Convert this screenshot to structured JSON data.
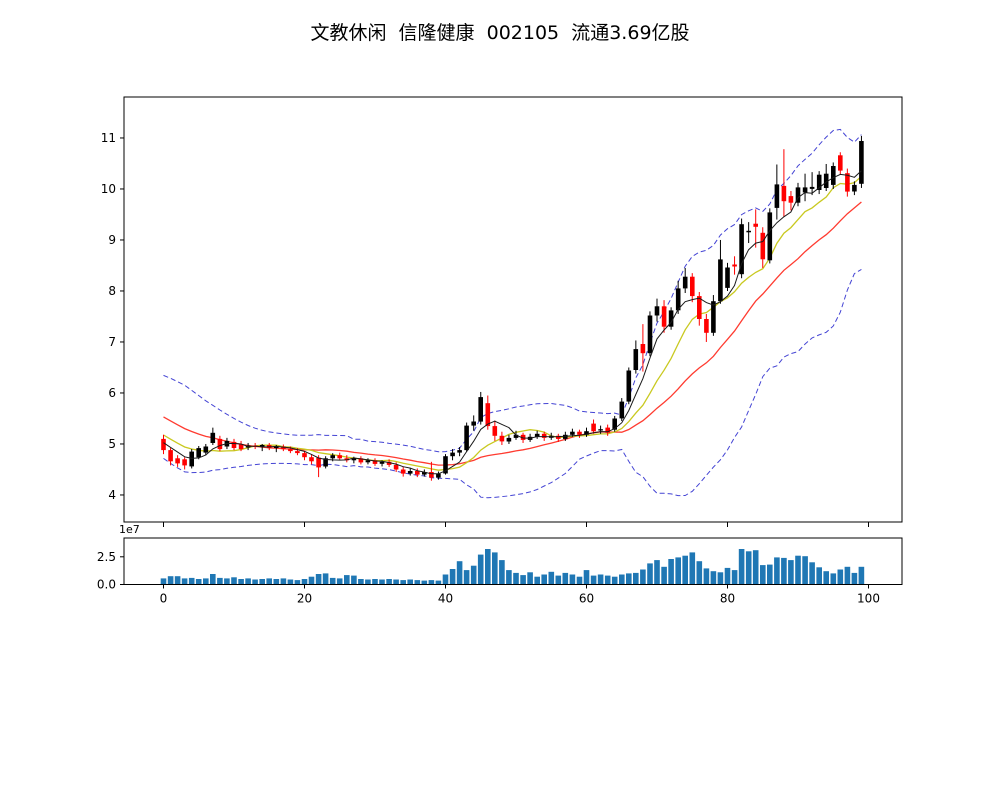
{
  "title": "文教休闲  信隆健康  002105  流通3.69亿股",
  "chart_data": {
    "type": "candlestick",
    "title": "文教休闲  信隆健康  002105  流通3.69亿股",
    "xlabel": "",
    "ylabel": "",
    "grid": false,
    "legend": "none",
    "x_axis": {
      "ticks": [
        0,
        20,
        40,
        60,
        80,
        100
      ],
      "xlim": [
        -5.6,
        104.7
      ]
    },
    "price_axis": {
      "ticks": [
        4,
        5,
        6,
        7,
        8,
        9,
        10,
        11
      ],
      "ylim": [
        3.47,
        11.79
      ]
    },
    "volume_axis": {
      "tick_values": [
        0,
        2.5
      ],
      "tick_labels": [
        "0.0",
        "2.5"
      ],
      "multiplier_label": "1e7",
      "ylim": [
        0,
        4.2
      ],
      "unit": "1e7 shares"
    },
    "days": 100,
    "ohlc": [
      [
        5.1,
        5.18,
        4.8,
        4.88
      ],
      [
        4.88,
        4.92,
        4.58,
        4.66
      ],
      [
        4.72,
        4.78,
        4.55,
        4.62
      ],
      [
        4.7,
        4.74,
        4.5,
        4.58
      ],
      [
        4.56,
        4.9,
        4.52,
        4.85
      ],
      [
        4.74,
        4.96,
        4.7,
        4.92
      ],
      [
        4.83,
        5.0,
        4.78,
        4.95
      ],
      [
        5.02,
        5.32,
        4.98,
        5.22
      ],
      [
        5.1,
        5.16,
        4.86,
        4.9
      ],
      [
        4.95,
        5.12,
        4.9,
        5.06
      ],
      [
        5.04,
        5.1,
        4.88,
        4.92
      ],
      [
        5.0,
        5.06,
        4.86,
        4.9
      ],
      [
        4.93,
        5.02,
        4.88,
        4.97
      ],
      [
        4.97,
        5.02,
        4.9,
        4.94
      ],
      [
        4.94,
        5.0,
        4.86,
        4.98
      ],
      [
        4.98,
        5.02,
        4.88,
        4.92
      ],
      [
        4.92,
        4.98,
        4.84,
        4.95
      ],
      [
        4.95,
        4.99,
        4.86,
        4.9
      ],
      [
        4.9,
        4.95,
        4.82,
        4.86
      ],
      [
        4.86,
        4.92,
        4.78,
        4.82
      ],
      [
        4.82,
        4.86,
        4.68,
        4.74
      ],
      [
        4.74,
        4.8,
        4.6,
        4.66
      ],
      [
        4.73,
        4.78,
        4.35,
        4.54
      ],
      [
        4.56,
        4.76,
        4.52,
        4.72
      ],
      [
        4.72,
        4.82,
        4.66,
        4.78
      ],
      [
        4.78,
        4.83,
        4.68,
        4.72
      ],
      [
        4.72,
        4.78,
        4.64,
        4.68
      ],
      [
        4.68,
        4.75,
        4.62,
        4.72
      ],
      [
        4.72,
        4.76,
        4.6,
        4.64
      ],
      [
        4.64,
        4.72,
        4.6,
        4.68
      ],
      [
        4.68,
        4.72,
        4.57,
        4.61
      ],
      [
        4.61,
        4.68,
        4.56,
        4.65
      ],
      [
        4.65,
        4.7,
        4.55,
        4.59
      ],
      [
        4.59,
        4.64,
        4.45,
        4.5
      ],
      [
        4.5,
        4.56,
        4.36,
        4.42
      ],
      [
        4.42,
        4.52,
        4.38,
        4.47
      ],
      [
        4.47,
        4.52,
        4.35,
        4.4
      ],
      [
        4.4,
        4.5,
        4.36,
        4.45
      ],
      [
        4.45,
        4.65,
        4.28,
        4.34
      ],
      [
        4.34,
        4.46,
        4.3,
        4.42
      ],
      [
        4.42,
        4.8,
        4.4,
        4.76
      ],
      [
        4.76,
        4.9,
        4.68,
        4.83
      ],
      [
        4.83,
        4.94,
        4.76,
        4.88
      ],
      [
        4.88,
        5.42,
        4.85,
        5.36
      ],
      [
        5.36,
        5.56,
        5.26,
        5.44
      ],
      [
        5.44,
        6.02,
        5.38,
        5.92
      ],
      [
        5.8,
        5.95,
        5.28,
        5.35
      ],
      [
        5.35,
        5.46,
        5.06,
        5.16
      ],
      [
        5.16,
        5.24,
        4.98,
        5.05
      ],
      [
        5.05,
        5.18,
        5.0,
        5.12
      ],
      [
        5.12,
        5.26,
        5.08,
        5.18
      ],
      [
        5.18,
        5.22,
        5.02,
        5.08
      ],
      [
        5.08,
        5.2,
        5.04,
        5.14
      ],
      [
        5.14,
        5.26,
        5.1,
        5.2
      ],
      [
        5.2,
        5.24,
        5.06,
        5.12
      ],
      [
        5.12,
        5.22,
        5.08,
        5.16
      ],
      [
        5.16,
        5.2,
        5.04,
        5.1
      ],
      [
        5.1,
        5.24,
        5.06,
        5.18
      ],
      [
        5.18,
        5.3,
        5.14,
        5.24
      ],
      [
        5.24,
        5.28,
        5.12,
        5.18
      ],
      [
        5.18,
        5.32,
        5.14,
        5.25
      ],
      [
        5.4,
        5.48,
        5.2,
        5.25
      ],
      [
        5.27,
        5.36,
        5.2,
        5.29
      ],
      [
        5.32,
        5.38,
        5.16,
        5.22
      ],
      [
        5.28,
        5.55,
        5.24,
        5.5
      ],
      [
        5.5,
        5.9,
        5.45,
        5.83
      ],
      [
        5.83,
        6.5,
        5.78,
        6.44
      ],
      [
        6.45,
        7.03,
        6.38,
        6.86
      ],
      [
        6.96,
        7.35,
        6.42,
        6.78
      ],
      [
        6.78,
        7.6,
        6.72,
        7.52
      ],
      [
        7.52,
        7.85,
        7.4,
        7.7
      ],
      [
        7.7,
        7.82,
        7.18,
        7.3
      ],
      [
        7.3,
        7.68,
        7.24,
        7.62
      ],
      [
        7.62,
        8.2,
        7.55,
        8.05
      ],
      [
        8.05,
        8.45,
        7.96,
        8.28
      ],
      [
        8.28,
        8.35,
        7.78,
        7.9
      ],
      [
        7.9,
        7.98,
        7.32,
        7.45
      ],
      [
        7.45,
        7.55,
        7.0,
        7.18
      ],
      [
        7.18,
        7.92,
        7.12,
        7.8
      ],
      [
        7.8,
        9.0,
        7.75,
        8.62
      ],
      [
        8.06,
        8.55,
        8.0,
        8.46
      ],
      [
        8.52,
        8.68,
        8.32,
        8.48
      ],
      [
        8.33,
        9.42,
        8.25,
        9.31
      ],
      [
        9.15,
        9.35,
        8.94,
        9.18
      ],
      [
        9.32,
        9.6,
        8.85,
        9.26
      ],
      [
        9.14,
        9.25,
        8.45,
        8.62
      ],
      [
        8.6,
        9.62,
        8.54,
        9.54
      ],
      [
        9.63,
        10.48,
        9.4,
        10.09
      ],
      [
        10.06,
        10.78,
        9.45,
        9.76
      ],
      [
        9.86,
        9.96,
        9.58,
        9.73
      ],
      [
        9.73,
        10.12,
        9.66,
        10.03
      ],
      [
        9.93,
        10.3,
        9.76,
        10.03
      ],
      [
        10.0,
        10.33,
        9.88,
        10.04
      ],
      [
        9.98,
        10.35,
        9.9,
        10.28
      ],
      [
        10.02,
        10.49,
        9.96,
        10.3
      ],
      [
        10.08,
        10.52,
        10.0,
        10.45
      ],
      [
        10.66,
        10.72,
        10.28,
        10.36
      ],
      [
        10.31,
        10.4,
        9.85,
        9.95
      ],
      [
        9.95,
        10.15,
        9.88,
        10.08
      ],
      [
        10.1,
        11.04,
        10.02,
        10.94
      ]
    ],
    "volume_1e7": [
      0.55,
      0.75,
      0.75,
      0.55,
      0.6,
      0.5,
      0.55,
      0.95,
      0.6,
      0.55,
      0.65,
      0.5,
      0.55,
      0.45,
      0.5,
      0.55,
      0.5,
      0.55,
      0.45,
      0.4,
      0.5,
      0.7,
      0.95,
      1.0,
      0.6,
      0.55,
      0.85,
      0.8,
      0.5,
      0.45,
      0.5,
      0.45,
      0.5,
      0.45,
      0.4,
      0.45,
      0.4,
      0.35,
      0.4,
      0.35,
      0.9,
      1.4,
      2.1,
      1.3,
      1.7,
      2.7,
      3.2,
      2.9,
      2.2,
      1.3,
      1.05,
      0.85,
      1.1,
      0.7,
      0.9,
      1.15,
      0.8,
      1.05,
      0.9,
      0.7,
      1.3,
      0.8,
      0.9,
      0.8,
      0.7,
      0.9,
      1.0,
      1.05,
      1.35,
      1.9,
      2.2,
      1.6,
      2.3,
      2.45,
      2.6,
      2.9,
      2.1,
      1.45,
      1.2,
      1.1,
      1.5,
      1.3,
      3.2,
      3.0,
      3.1,
      1.75,
      1.8,
      2.45,
      2.4,
      2.2,
      2.6,
      2.55,
      2.0,
      1.55,
      1.2,
      1.0,
      1.35,
      1.6,
      1.05,
      1.6
    ],
    "overlays": {
      "ma_fast_period": 5,
      "ma_mid_period": 10,
      "ma_slow_period": 20,
      "band_period": 20,
      "band_mult": 2,
      "seed_closes": [
        6.3,
        6.22,
        6.15,
        6.08,
        6.0,
        5.92,
        5.85,
        5.78,
        5.7,
        5.62,
        5.55,
        5.48,
        5.4,
        5.32,
        5.25,
        5.18,
        5.12,
        5.08,
        5.04,
        5.0
      ]
    },
    "colors": {
      "up": "#000000",
      "down": "#ff0000",
      "ma_fast": "#1a1a1a",
      "ma_mid": "#c9c920",
      "ma_slow": "#ff3b30",
      "band": "#4444d4",
      "volume": "#1f77b4",
      "spine": "#000000",
      "text": "#000000",
      "background": "#ffffff"
    }
  }
}
